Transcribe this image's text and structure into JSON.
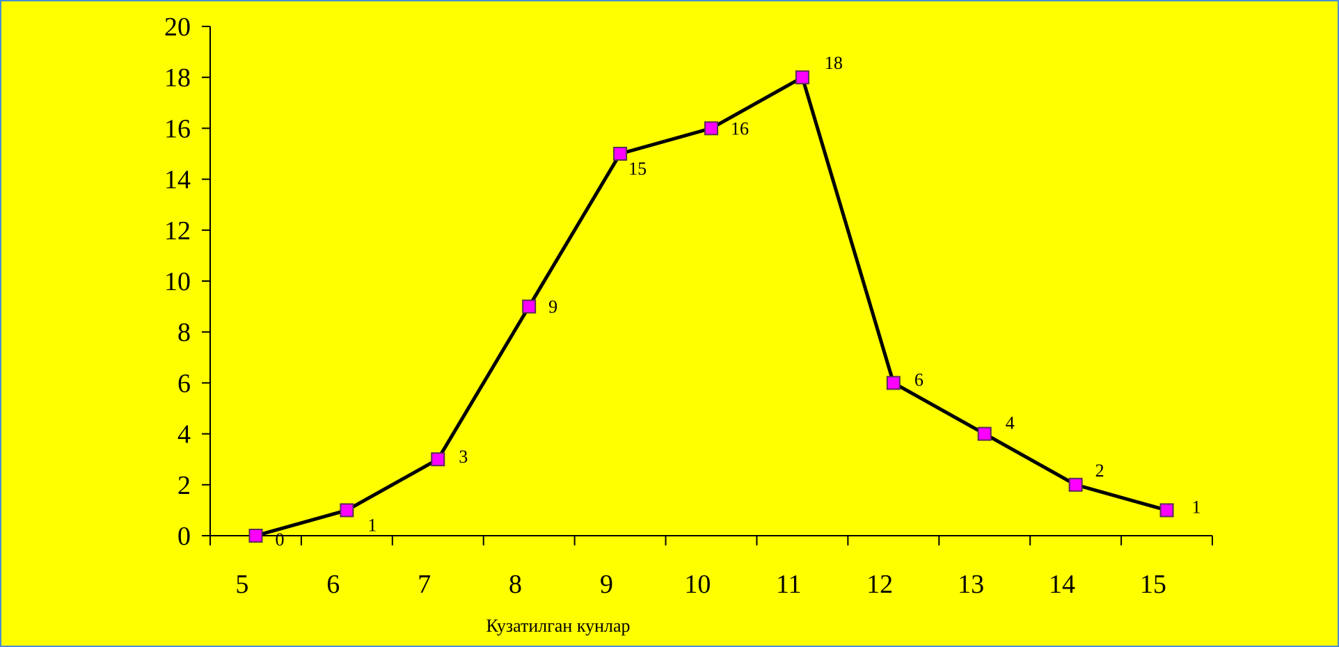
{
  "colors": {
    "background": "#ffff00",
    "frame_border": "#4a8fd0",
    "line": "#000000",
    "marker_fill": "#ff00ff",
    "marker_stroke": "#5a2a5a"
  },
  "chart_data": {
    "type": "line",
    "title": "",
    "xlabel": "Кузатилган кунлар",
    "ylabel": "",
    "x": [
      5,
      6,
      7,
      8,
      9,
      10,
      11,
      12,
      13,
      14,
      15
    ],
    "x_tick_labels": [
      "5",
      "6",
      "7",
      "8",
      "9",
      "10",
      "11",
      "12",
      "13",
      "14",
      "15"
    ],
    "y_tick_labels": [
      "0",
      "2",
      "4",
      "6",
      "8",
      "10",
      "12",
      "14",
      "16",
      "18",
      "20"
    ],
    "ylim": [
      0,
      20
    ],
    "grid": false,
    "legend": "none",
    "marker": "square",
    "series": [
      {
        "values": [
          0,
          1,
          3,
          9,
          15,
          16,
          18,
          6,
          4,
          2,
          1
        ],
        "data_labels": [
          "0",
          "1",
          "3",
          "9",
          "15",
          "16",
          "18",
          "6",
          "4",
          "2",
          "1"
        ]
      }
    ]
  }
}
